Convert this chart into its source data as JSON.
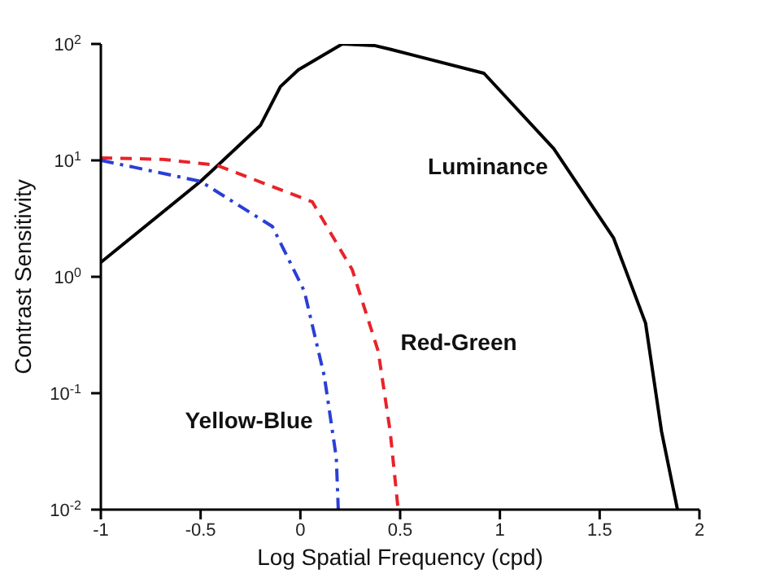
{
  "chart_data": {
    "type": "line",
    "xlabel": "Log Spatial Frequency (cpd)",
    "ylabel": "Contrast Sensitivity",
    "log": "y",
    "grid": false,
    "legend": false,
    "marker": "none",
    "xlim": [
      -1,
      2
    ],
    "xticks": [
      -1,
      -0.5,
      0,
      0.5,
      1,
      1.5,
      2
    ],
    "ylim": [
      0.01,
      100
    ],
    "yticks": [
      {
        "value": 0.01,
        "label": "10$^{-2}$"
      },
      {
        "value": 0.1,
        "label": "10$^{-1}$"
      },
      {
        "value": 1,
        "label": "10$^{0}$"
      },
      {
        "value": 10,
        "label": "10$^{1}$"
      },
      {
        "value": 100,
        "label": "10$^{2}$"
      }
    ],
    "series": [
      {
        "name": "Luminance",
        "color": "#000000",
        "line_style": "solid",
        "x": [
          -1,
          -0.5,
          -0.2,
          -0.1,
          -0.01,
          0.21,
          0.37,
          0.45,
          0.92,
          1.27,
          1.57,
          1.73,
          1.81,
          1.89
        ],
        "values": [
          1.33,
          6.6,
          20,
          43,
          60,
          100,
          97,
          90,
          56,
          12.6,
          2.15,
          0.4,
          0.047,
          0.01
        ]
      },
      {
        "name": "Red-Green",
        "color": "#e8232a",
        "line_style": "dashed",
        "x": [
          -1,
          -0.69,
          -0.42,
          0.06,
          0.26,
          0.39,
          0.45,
          0.49
        ],
        "values": [
          10.5,
          10.2,
          9.1,
          4.4,
          1.15,
          0.23,
          0.047,
          0.01
        ]
      },
      {
        "name": "Yellow-Blue",
        "color": "#2a3fd6",
        "line_style": "dashdot",
        "x": [
          -1,
          -0.83,
          -0.5,
          -0.14,
          0.02,
          0.12,
          0.18,
          0.19
        ],
        "values": [
          10,
          8.7,
          6.6,
          2.7,
          0.75,
          0.14,
          0.028,
          0.01
        ]
      }
    ]
  }
}
